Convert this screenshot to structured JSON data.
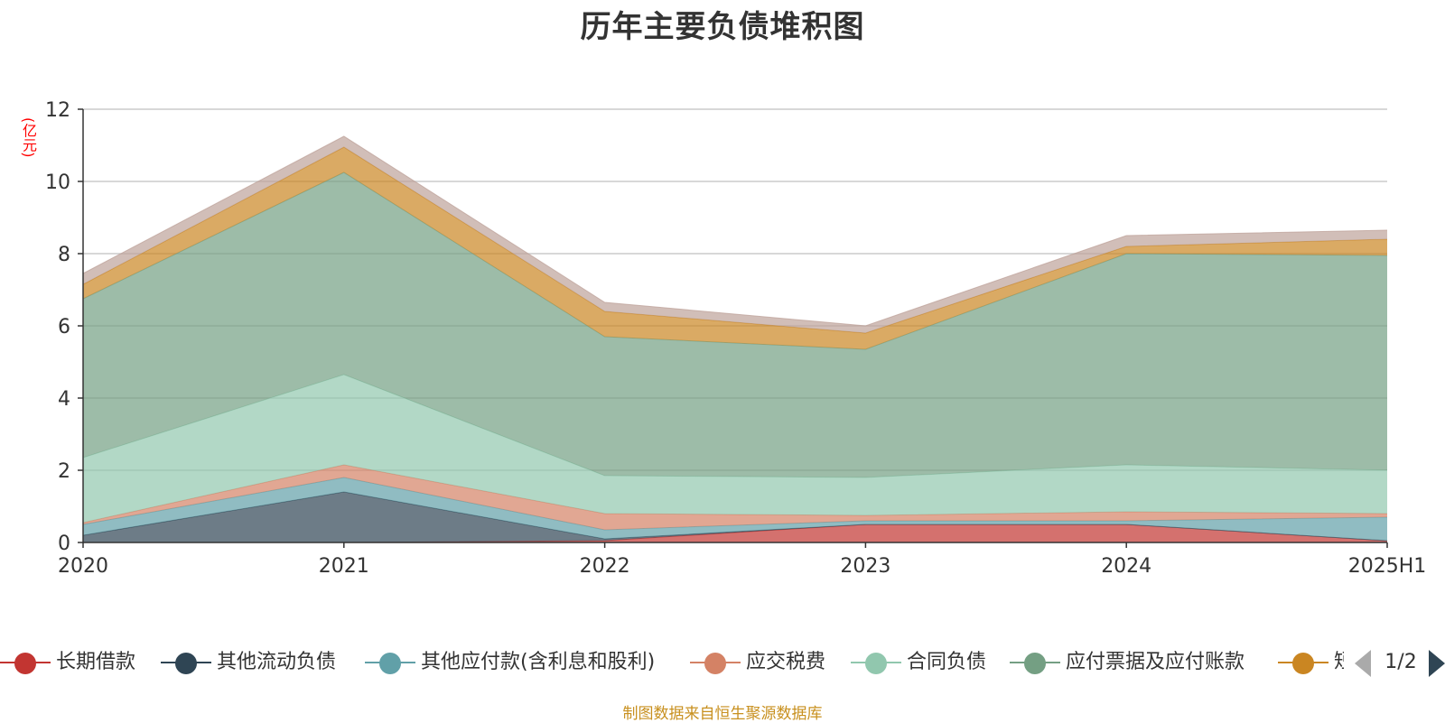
{
  "chart_data": {
    "type": "area",
    "stacked": true,
    "title": "历年主要负债堆积图",
    "unit_label": "(亿元)",
    "categories": [
      "2020",
      "2021",
      "2022",
      "2023",
      "2024",
      "2025H1"
    ],
    "ylim": [
      0,
      12
    ],
    "yticks": [
      "0",
      "2",
      "4",
      "6",
      "8",
      "10",
      "12"
    ],
    "grid": true,
    "legend_position": "bottom",
    "series": [
      {
        "name": "长期借款",
        "color": "#c23531",
        "values": [
          0,
          0,
          0.05,
          0.5,
          0.5,
          0.05
        ]
      },
      {
        "name": "其他流动负债",
        "color": "#2f4554",
        "values": [
          0.2,
          1.4,
          0.05,
          0,
          0,
          0
        ]
      },
      {
        "name": "其他应付款(含利息和股利)",
        "color": "#61a0a8",
        "values": [
          0.3,
          0.4,
          0.25,
          0.1,
          0.1,
          0.65
        ]
      },
      {
        "name": "应交税费",
        "color": "#d48265",
        "values": [
          0.05,
          0.35,
          0.45,
          0.15,
          0.25,
          0.1
        ]
      },
      {
        "name": "合同负债",
        "color": "#91c7ae",
        "values": [
          1.8,
          2.5,
          1.05,
          1.05,
          1.3,
          1.2
        ]
      },
      {
        "name": "应付票据及应付账款",
        "color": "#749f83",
        "values": [
          4.4,
          5.6,
          3.85,
          3.55,
          5.85,
          5.95
        ]
      },
      {
        "name": "短期借款",
        "color": "#ca8622",
        "values": [
          0.4,
          0.7,
          0.7,
          0.45,
          0.2,
          0.45
        ]
      },
      {
        "name": "",
        "color": "#bda29a",
        "values": [
          0.3,
          0.3,
          0.25,
          0.2,
          0.3,
          0.25
        ]
      }
    ]
  },
  "legend": {
    "items": [
      "长期借款",
      "其他流动负债",
      "其他应付款(含利息和股利)",
      "应交税费",
      "合同负债",
      "应付票据及应付账款",
      "短期借款"
    ],
    "page_indicator": "1/2"
  },
  "colors": {
    "title": "#333333",
    "unit_label": "#ff0000",
    "axis": "#333333",
    "grid": "#cccccc",
    "footer": "#c8901f"
  },
  "footer_note": "制图数据来自恒生聚源数据库"
}
